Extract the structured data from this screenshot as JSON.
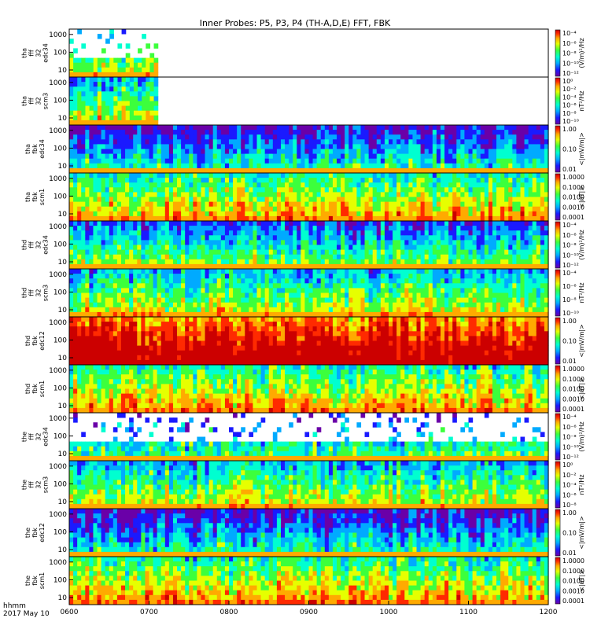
{
  "title": "Inner Probes: P5, P3, P4 (TH-A,D,E) FFT, FBK",
  "footer": {
    "time_label": "hhmm",
    "date_label": "2017 May 10"
  },
  "colors": {
    "ramp": [
      "#6a00a8",
      "#1a1aff",
      "#00aaff",
      "#00ffd0",
      "#3cff3c",
      "#e6ff00",
      "#ffaa00",
      "#ff2a00",
      "#cc0000"
    ]
  },
  "chart_data": {
    "type": "heatmap",
    "title": "Inner Probes: P5, P3, P4 (TH-A,D,E) FFT, FBK",
    "x": {
      "ticks": [
        "0600",
        "0700",
        "0800",
        "0900",
        "1000",
        "1100",
        "1200"
      ],
      "range_minutes": [
        360,
        720
      ]
    },
    "y_axis": {
      "scale": "log",
      "ticks": [
        "10",
        "100",
        "1000"
      ],
      "range_hz": [
        4,
        2000
      ]
    },
    "panels": [
      {
        "label": [
          "tha",
          "fff",
          "32",
          "edc34"
        ],
        "data_end": 0.185,
        "bias": 0.25,
        "sparse": true,
        "cbar_ticks": [
          "10⁻⁴",
          "10⁻⁶",
          "10⁻⁸",
          "10⁻¹⁰",
          "10⁻¹²"
        ],
        "cbar_unit": "(V/m)²/Hz"
      },
      {
        "label": [
          "tha",
          "fff",
          "32",
          "scm3"
        ],
        "data_end": 0.185,
        "bias": 0.3,
        "sparse": false,
        "cbar_ticks": [
          "10⁰",
          "10⁻²",
          "10⁻⁴",
          "10⁻⁶",
          "10⁻⁸",
          "10⁻¹⁰"
        ],
        "cbar_unit": "nT²/Hz"
      },
      {
        "label": [
          "tha",
          "fbk",
          "edc34"
        ],
        "data_end": 1.0,
        "bias": 0.1,
        "sparse": false,
        "cbar_ticks": [
          "1.00",
          "0.10",
          "0.01"
        ],
        "cbar_unit": "<|mV/m|>"
      },
      {
        "label": [
          "tha",
          "fbk",
          "scm1"
        ],
        "data_end": 1.0,
        "bias": 0.4,
        "sparse": false,
        "cbar_ticks": [
          "1.0000",
          "0.1000",
          "0.0100",
          "0.0010",
          "0.0001"
        ],
        "cbar_unit": "<|nT|>"
      },
      {
        "label": [
          "thd",
          "fff",
          "32",
          "edc34"
        ],
        "data_end": 1.0,
        "bias": 0.2,
        "sparse": false,
        "cbar_ticks": [
          "10⁻⁴",
          "10⁻⁶",
          "10⁻⁸",
          "10⁻¹⁰",
          "10⁻¹²"
        ],
        "cbar_unit": "(V/m)²/Hz"
      },
      {
        "label": [
          "thd",
          "fff",
          "32",
          "scm3"
        ],
        "data_end": 1.0,
        "bias": 0.3,
        "sparse": false,
        "cbar_ticks": [
          "10⁻⁴",
          "10⁻⁶",
          "10⁻⁸",
          "10⁻¹⁰"
        ],
        "cbar_unit": "nT²/Hz"
      },
      {
        "label": [
          "thd",
          "fbk",
          "edc12"
        ],
        "data_end": 1.0,
        "bias": 0.75,
        "sparse": false,
        "cbar_ticks": [
          "1.00",
          "0.10",
          "0.01"
        ],
        "cbar_unit": "<|mV/m|>"
      },
      {
        "label": [
          "thd",
          "fbk",
          "scm1"
        ],
        "data_end": 1.0,
        "bias": 0.4,
        "sparse": false,
        "cbar_ticks": [
          "1.0000",
          "0.1000",
          "0.0100",
          "0.0010",
          "0.0001"
        ],
        "cbar_unit": "<|nT|>"
      },
      {
        "label": [
          "the",
          "fff",
          "32",
          "edc34"
        ],
        "data_end": 1.0,
        "bias": 0.15,
        "sparse": true,
        "cbar_ticks": [
          "10⁻⁴",
          "10⁻⁶",
          "10⁻⁸",
          "10⁻¹⁰",
          "10⁻¹²"
        ],
        "cbar_unit": "(V/m)²/Hz"
      },
      {
        "label": [
          "the",
          "fff",
          "32",
          "scm3"
        ],
        "data_end": 1.0,
        "bias": 0.3,
        "sparse": false,
        "cbar_ticks": [
          "10⁰",
          "10⁻²",
          "10⁻⁴",
          "10⁻⁶",
          "10⁻⁸"
        ],
        "cbar_unit": "nT²/Hz"
      },
      {
        "label": [
          "the",
          "fbk",
          "edc12"
        ],
        "data_end": 1.0,
        "bias": 0.08,
        "sparse": false,
        "cbar_ticks": [
          "1.00",
          "0.10",
          "0.01"
        ],
        "cbar_unit": "<|mV/m|>"
      },
      {
        "label": [
          "the",
          "fbk",
          "scm1"
        ],
        "data_end": 1.0,
        "bias": 0.4,
        "sparse": false,
        "cbar_ticks": [
          "1.0000",
          "0.1000",
          "0.0100",
          "0.0010",
          "0.0001"
        ],
        "cbar_unit": "<|nT|>"
      }
    ]
  }
}
